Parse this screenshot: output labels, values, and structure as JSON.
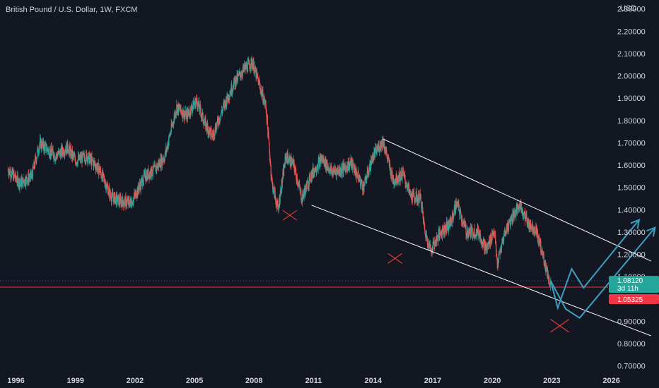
{
  "chart_data": {
    "type": "candlestick",
    "title": "British Pound / U.S. Dollar, 1W, FXCM",
    "currency": "USD",
    "y_ticks": [
      "2.30000",
      "2.20000",
      "2.10000",
      "2.00000",
      "1.90000",
      "1.80000",
      "1.70000",
      "1.60000",
      "1.50000",
      "1.40000",
      "1.30000",
      "1.20000",
      "1.10000",
      "0.90000",
      "0.80000",
      "0.70000"
    ],
    "x_ticks": [
      "1996",
      "1999",
      "2002",
      "2005",
      "2008",
      "2011",
      "2014",
      "2017",
      "2020",
      "2023",
      "2026"
    ],
    "ylim": [
      0.68,
      2.34
    ],
    "xlim": [
      1995.2,
      2028.4
    ],
    "last_price": "1.08120",
    "countdown": "3d 11h",
    "red_level": "1.05325",
    "price_path": [
      [
        1995.6,
        1.58
      ],
      [
        1996.2,
        1.52
      ],
      [
        1996.8,
        1.55
      ],
      [
        1997.2,
        1.7
      ],
      [
        1998.0,
        1.64
      ],
      [
        1998.6,
        1.68
      ],
      [
        1999.0,
        1.62
      ],
      [
        1999.6,
        1.64
      ],
      [
        2000.2,
        1.58
      ],
      [
        2000.8,
        1.46
      ],
      [
        2001.2,
        1.44
      ],
      [
        2001.8,
        1.43
      ],
      [
        2002.5,
        1.55
      ],
      [
        2003.0,
        1.58
      ],
      [
        2003.5,
        1.64
      ],
      [
        2004.1,
        1.86
      ],
      [
        2004.6,
        1.82
      ],
      [
        2005.1,
        1.89
      ],
      [
        2005.5,
        1.79
      ],
      [
        2005.9,
        1.73
      ],
      [
        2006.5,
        1.87
      ],
      [
        2007.0,
        1.97
      ],
      [
        2007.5,
        2.03
      ],
      [
        2007.9,
        2.06
      ],
      [
        2008.2,
        1.98
      ],
      [
        2008.6,
        1.86
      ],
      [
        2008.9,
        1.52
      ],
      [
        2009.2,
        1.4
      ],
      [
        2009.6,
        1.64
      ],
      [
        2010.0,
        1.6
      ],
      [
        2010.4,
        1.45
      ],
      [
        2010.9,
        1.56
      ],
      [
        2011.4,
        1.63
      ],
      [
        2011.9,
        1.57
      ],
      [
        2012.4,
        1.58
      ],
      [
        2012.9,
        1.61
      ],
      [
        2013.5,
        1.5
      ],
      [
        2014.0,
        1.64
      ],
      [
        2014.5,
        1.71
      ],
      [
        2015.0,
        1.53
      ],
      [
        2015.5,
        1.56
      ],
      [
        2015.9,
        1.46
      ],
      [
        2016.4,
        1.45
      ],
      [
        2016.6,
        1.3
      ],
      [
        2016.9,
        1.22
      ],
      [
        2017.4,
        1.3
      ],
      [
        2017.9,
        1.34
      ],
      [
        2018.2,
        1.43
      ],
      [
        2018.7,
        1.3
      ],
      [
        2019.3,
        1.3
      ],
      [
        2019.7,
        1.22
      ],
      [
        2020.1,
        1.31
      ],
      [
        2020.25,
        1.15
      ],
      [
        2020.6,
        1.29
      ],
      [
        2021.0,
        1.37
      ],
      [
        2021.4,
        1.42
      ],
      [
        2021.8,
        1.34
      ],
      [
        2022.2,
        1.31
      ],
      [
        2022.6,
        1.18
      ],
      [
        2022.9,
        1.07
      ],
      [
        2022.95,
        1.08
      ]
    ],
    "channel": {
      "upper": [
        [
          2014.5,
          1.717
        ],
        [
          2028.0,
          1.17
        ]
      ],
      "lower": [
        [
          2010.9,
          1.42
        ],
        [
          2028.0,
          0.835
        ]
      ]
    },
    "blue_path_1": [
      [
        2022.95,
        1.08
      ],
      [
        2023.3,
        0.96
      ],
      [
        2024.0,
        1.135
      ],
      [
        2024.6,
        1.05
      ],
      [
        2027.4,
        1.355
      ]
    ],
    "blue_path_2": [
      [
        2022.95,
        1.08
      ],
      [
        2023.7,
        0.955
      ],
      [
        2024.4,
        0.915
      ],
      [
        2028.2,
        1.32
      ]
    ],
    "markers_x": [
      [
        2009.8,
        1.375
      ],
      [
        2015.1,
        1.182
      ],
      [
        2023.4,
        0.88
      ]
    ],
    "colors": {
      "background": "#131722",
      "up": "#26a69a",
      "down": "#ef5350",
      "channel": "#ffffff",
      "arrow": "#3d9fbf",
      "marker": "#e03a3a",
      "red_line": "#f23645",
      "last_badge": "#26a69a",
      "red_badge": "#f23645",
      "text": "#d1d4dc"
    }
  }
}
